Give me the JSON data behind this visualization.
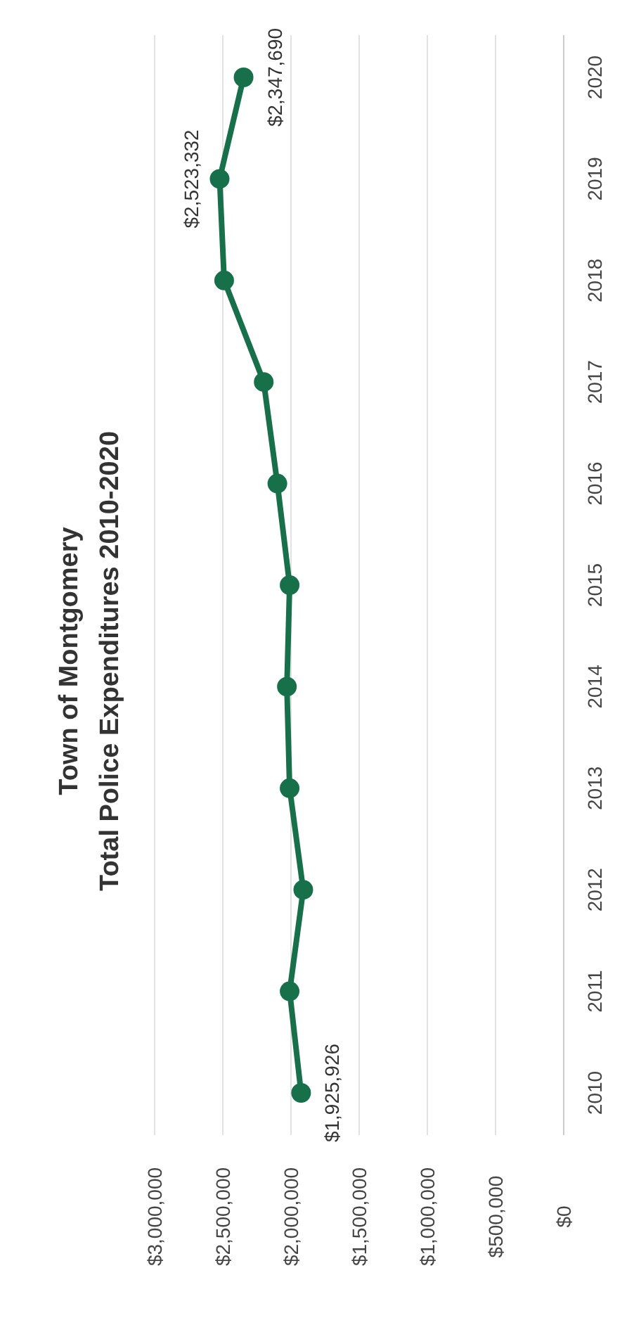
{
  "chart_data": {
    "type": "line",
    "orientation": "horizontal",
    "title": "Town of Montgomery",
    "subtitle": "Total Police Expenditures 2010-2020",
    "categories": [
      "2020",
      "2019",
      "2018",
      "2017",
      "2016",
      "2015",
      "2014",
      "2013",
      "2012",
      "2011",
      "2010"
    ],
    "values": [
      2347690,
      2523332,
      2490000,
      2200000,
      2100000,
      2010000,
      2030000,
      2010000,
      1910000,
      2010000,
      1925926
    ],
    "value_labels": [
      "$2,347,690",
      "$2,523,332",
      null,
      null,
      null,
      null,
      null,
      null,
      null,
      null,
      "$1,925,926"
    ],
    "color": "#17704a",
    "marker": "circle",
    "line_style": "solid",
    "grid": "x",
    "legend": false,
    "xlim": [
      3000000,
      0
    ],
    "xticks": [
      {
        "value": 3000000,
        "label": "$3,000,000"
      },
      {
        "value": 2500000,
        "label": "$2,500,000"
      },
      {
        "value": 2000000,
        "label": "$2,000,000"
      },
      {
        "value": 1500000,
        "label": "$1,500,000"
      },
      {
        "value": 1000000,
        "label": "$1,000,000"
      },
      {
        "value": 500000,
        "label": "$500,000"
      },
      {
        "value": 0,
        "label": "$0"
      }
    ]
  }
}
